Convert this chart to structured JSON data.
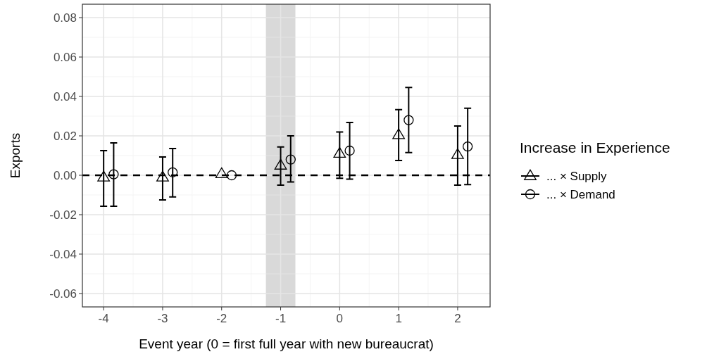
{
  "chart_data": {
    "type": "scatter",
    "xlabel": "Event year (0 = first full year with new bureaucrat)",
    "ylabel": "Exports",
    "legend_title": "Increase in Experience",
    "xlim": [
      -4.36,
      2.55
    ],
    "xticks": [
      -4,
      -3,
      -2,
      -1,
      0,
      1,
      2
    ],
    "ylim": [
      -0.0668,
      0.0868
    ],
    "yticks": [
      {
        "value": -0.06,
        "label": "-0.06"
      },
      {
        "value": -0.04,
        "label": "-0.04"
      },
      {
        "value": -0.02,
        "label": "-0.02"
      },
      {
        "value": 0,
        "label": "0.00"
      },
      {
        "value": 0.02,
        "label": "0.02"
      },
      {
        "value": 0.04,
        "label": "0.04"
      },
      {
        "value": 0.06,
        "label": "0.06"
      },
      {
        "value": 0.08,
        "label": "0.08"
      }
    ],
    "grid": true,
    "legend": "right",
    "series": [
      {
        "name": "... × Supply",
        "color": "#000000",
        "marker": "triangle",
        "x": [
          -4,
          -3,
          -2,
          -1,
          0,
          1,
          2
        ],
        "values": [
          -0.001,
          -0.001,
          0.0007,
          0.005,
          0.011,
          0.0205,
          0.0104
        ],
        "errors": [
          [
            -0.0157,
            0.0125
          ],
          [
            -0.0125,
            0.0093
          ],
          null,
          [
            -0.005,
            0.0144
          ],
          [
            -0.0015,
            0.022
          ],
          [
            0.0075,
            0.0333
          ],
          [
            -0.005,
            0.025
          ]
        ]
      },
      {
        "name": "... × Demand",
        "color": "#000000",
        "marker": "circle",
        "x": [
          -3.83,
          -2.83,
          -1.83,
          -0.83,
          0.17,
          1.17,
          2.17
        ],
        "values": [
          0.0005,
          0.0015,
          0,
          0.008,
          0.0125,
          0.028,
          0.0146
        ],
        "errors": [
          [
            -0.0157,
            0.0164
          ],
          [
            -0.011,
            0.0136
          ],
          null,
          [
            -0.0034,
            0.02
          ],
          [
            -0.002,
            0.0268
          ],
          [
            0.0115,
            0.0446
          ],
          [
            -0.0047,
            0.034
          ]
        ]
      }
    ],
    "ref_lines": [
      {
        "axis": "y",
        "value": 0,
        "color": "#000000",
        "line_style": "dashed"
      }
    ],
    "bands": [
      {
        "axis": "x",
        "from": -1.25,
        "to": -0.75,
        "color": "#d9d9d9"
      }
    ]
  }
}
